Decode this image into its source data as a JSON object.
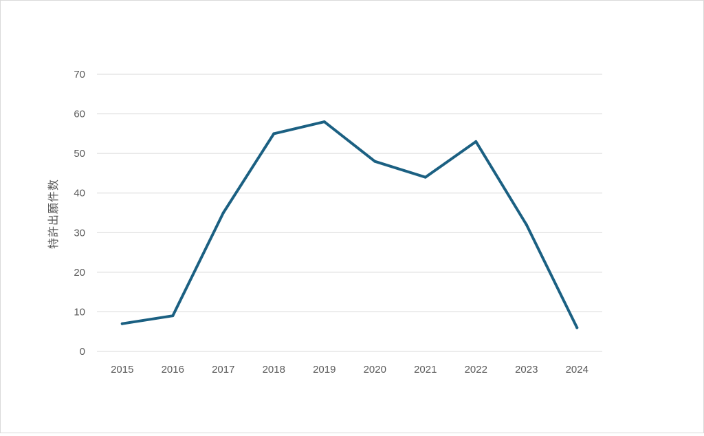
{
  "chart_data": {
    "type": "line",
    "title": "",
    "xlabel": "",
    "ylabel": "特許出願件数",
    "categories": [
      "2015",
      "2016",
      "2017",
      "2018",
      "2019",
      "2020",
      "2021",
      "2022",
      "2023",
      "2024"
    ],
    "series": [
      {
        "values": [
          7,
          9,
          35,
          55,
          58,
          48,
          44,
          53,
          32,
          6
        ],
        "color": "#1b6082"
      }
    ],
    "ylim": [
      0,
      70
    ],
    "yticks": [
      0,
      10,
      20,
      30,
      40,
      50,
      60,
      70
    ],
    "grid": true,
    "legend": "none"
  }
}
